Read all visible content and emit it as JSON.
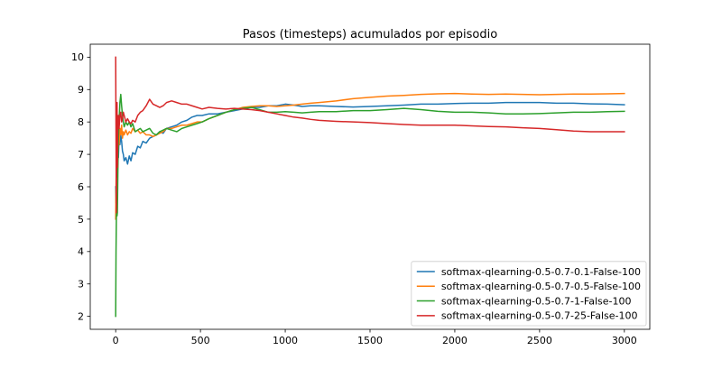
{
  "chart_data": {
    "type": "line",
    "title": "Pasos (timesteps) acumulados por episodio",
    "xlim": [
      -150,
      3150
    ],
    "ylim": [
      1.6,
      10.4
    ],
    "xticks": [
      0,
      500,
      1000,
      1500,
      2000,
      2500,
      3000
    ],
    "yticks": [
      2,
      3,
      4,
      5,
      6,
      7,
      8,
      9,
      10
    ],
    "grid": false,
    "legend_position": "lower-right",
    "x": [
      0,
      2,
      4,
      6,
      8,
      10,
      13,
      16,
      20,
      25,
      30,
      35,
      40,
      45,
      50,
      60,
      70,
      80,
      90,
      100,
      115,
      130,
      145,
      160,
      180,
      200,
      220,
      240,
      260,
      280,
      300,
      330,
      360,
      390,
      420,
      450,
      480,
      510,
      550,
      600,
      650,
      700,
      750,
      800,
      850,
      900,
      950,
      1000,
      1050,
      1100,
      1150,
      1200,
      1300,
      1400,
      1500,
      1600,
      1700,
      1800,
      1900,
      2000,
      2100,
      2200,
      2300,
      2400,
      2500,
      2600,
      2700,
      2800,
      2900,
      3000
    ],
    "series": [
      {
        "name": "softmax-qlearning-0.5-0.7-0.1-False-100",
        "color": "#1f77b4",
        "values": [
          6.0,
          5.5,
          6.5,
          6.3,
          7.2,
          6.4,
          7.0,
          6.9,
          7.5,
          7.3,
          7.6,
          7.4,
          7.1,
          7.0,
          6.8,
          6.9,
          6.7,
          6.95,
          6.8,
          7.05,
          7.0,
          7.25,
          7.2,
          7.4,
          7.35,
          7.5,
          7.55,
          7.6,
          7.7,
          7.65,
          7.8,
          7.85,
          7.9,
          8.0,
          8.05,
          8.15,
          8.2,
          8.2,
          8.25,
          8.25,
          8.3,
          8.35,
          8.4,
          8.45,
          8.45,
          8.5,
          8.5,
          8.55,
          8.52,
          8.48,
          8.5,
          8.5,
          8.48,
          8.46,
          8.48,
          8.5,
          8.52,
          8.55,
          8.55,
          8.57,
          8.58,
          8.58,
          8.6,
          8.6,
          8.6,
          8.58,
          8.58,
          8.56,
          8.55,
          8.53
        ]
      },
      {
        "name": "softmax-qlearning-0.5-0.7-0.5-False-100",
        "color": "#ff7f0e",
        "values": [
          5.0,
          6.0,
          6.8,
          7.0,
          6.9,
          7.2,
          7.0,
          7.4,
          7.3,
          7.8,
          7.6,
          7.9,
          7.5,
          7.7,
          7.6,
          7.75,
          7.6,
          7.7,
          7.65,
          7.8,
          7.7,
          7.75,
          7.65,
          7.7,
          7.6,
          7.6,
          7.55,
          7.6,
          7.65,
          7.7,
          7.8,
          7.8,
          7.85,
          7.9,
          7.9,
          7.95,
          8.0,
          8.0,
          8.1,
          8.2,
          8.3,
          8.38,
          8.45,
          8.48,
          8.5,
          8.5,
          8.48,
          8.5,
          8.52,
          8.55,
          8.58,
          8.6,
          8.65,
          8.72,
          8.76,
          8.8,
          8.82,
          8.85,
          8.87,
          8.88,
          8.86,
          8.85,
          8.86,
          8.85,
          8.84,
          8.85,
          8.86,
          8.86,
          8.87,
          8.88
        ]
      },
      {
        "name": "softmax-qlearning-0.5-0.7-1-False-100",
        "color": "#2ca02c",
        "values": [
          2.0,
          4.0,
          5.0,
          5.5,
          5.1,
          5.2,
          6.5,
          7.5,
          8.0,
          8.6,
          8.85,
          8.5,
          8.2,
          8.0,
          7.85,
          8.0,
          7.9,
          8.0,
          7.85,
          7.95,
          7.7,
          7.75,
          7.8,
          7.7,
          7.75,
          7.8,
          7.65,
          7.6,
          7.7,
          7.75,
          7.8,
          7.75,
          7.7,
          7.8,
          7.85,
          7.9,
          7.95,
          8.0,
          8.1,
          8.2,
          8.3,
          8.38,
          8.42,
          8.45,
          8.38,
          8.3,
          8.3,
          8.32,
          8.3,
          8.28,
          8.3,
          8.32,
          8.32,
          8.35,
          8.35,
          8.38,
          8.42,
          8.38,
          8.33,
          8.3,
          8.3,
          8.28,
          8.25,
          8.25,
          8.26,
          8.28,
          8.3,
          8.3,
          8.32,
          8.33
        ]
      },
      {
        "name": "softmax-qlearning-0.5-0.7-25-False-100",
        "color": "#d62728",
        "values": [
          10.0,
          7.5,
          5.2,
          7.2,
          8.6,
          6.6,
          7.8,
          8.2,
          7.8,
          8.2,
          8.3,
          8.0,
          8.1,
          8.3,
          8.2,
          8.0,
          8.1,
          8.0,
          7.95,
          8.05,
          8.0,
          8.2,
          8.3,
          8.35,
          8.5,
          8.7,
          8.55,
          8.5,
          8.45,
          8.5,
          8.6,
          8.65,
          8.6,
          8.55,
          8.55,
          8.5,
          8.45,
          8.4,
          8.45,
          8.42,
          8.4,
          8.42,
          8.4,
          8.38,
          8.35,
          8.3,
          8.25,
          8.2,
          8.15,
          8.12,
          8.08,
          8.05,
          8.02,
          8.0,
          7.98,
          7.95,
          7.92,
          7.9,
          7.9,
          7.9,
          7.88,
          7.86,
          7.85,
          7.82,
          7.8,
          7.76,
          7.72,
          7.7,
          7.7,
          7.7
        ]
      }
    ]
  }
}
